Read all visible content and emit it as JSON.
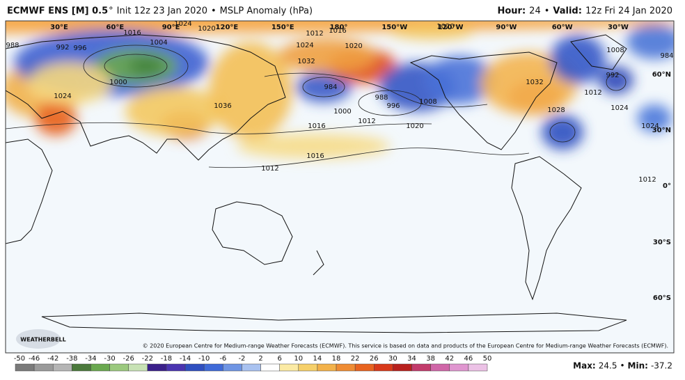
{
  "header": {
    "model": "ECMWF ENS [M] 0.5",
    "degree": "°",
    "init": "Init 12z 23 Jan 2020",
    "sep": "•",
    "product": "MSLP Anomaly (hPa)",
    "hour_label": "Hour:",
    "hour": "24",
    "valid_label": "Valid:",
    "valid": "12z Fri 24 Jan 2020"
  },
  "map": {
    "lon_labels": [
      "30°E",
      "60°E",
      "90°E",
      "120°E",
      "150°E",
      "180°",
      "150°W",
      "120°W",
      "90°W",
      "60°W",
      "30°W"
    ],
    "lat_labels": [
      "60°N",
      "30°N",
      "0°",
      "30°S",
      "60°S"
    ],
    "contour_labels": [
      "1016",
      "1020",
      "1024",
      "1004",
      "988",
      "992",
      "996",
      "1000",
      "1024",
      "1036",
      "1032",
      "1012",
      "1016",
      "1020",
      "1024",
      "984",
      "1000",
      "1012",
      "1016",
      "1016",
      "1012",
      "988",
      "996",
      "1008",
      "1020",
      "1020",
      "1032",
      "1028",
      "1012",
      "1024",
      "1008",
      "992",
      "984",
      "1024",
      "1012"
    ]
  },
  "footer": {
    "copyright": "© 2020 European Centre for Medium-range Weather Forecasts (ECMWF). This service is based on data and products of the European Centre for Medium-range Weather Forecasts (ECMWF).",
    "logo": "WEATHERBELL",
    "colorbar_ticks": [
      -50,
      -46,
      -42,
      -38,
      -34,
      -30,
      -26,
      -22,
      -18,
      -14,
      -10,
      -6,
      -2,
      2,
      6,
      10,
      14,
      18,
      22,
      26,
      30,
      34,
      38,
      42,
      46,
      50
    ],
    "max_label": "Max:",
    "max": 24.5,
    "sep": "•",
    "min_label": "Min:",
    "min": -37.2
  }
}
